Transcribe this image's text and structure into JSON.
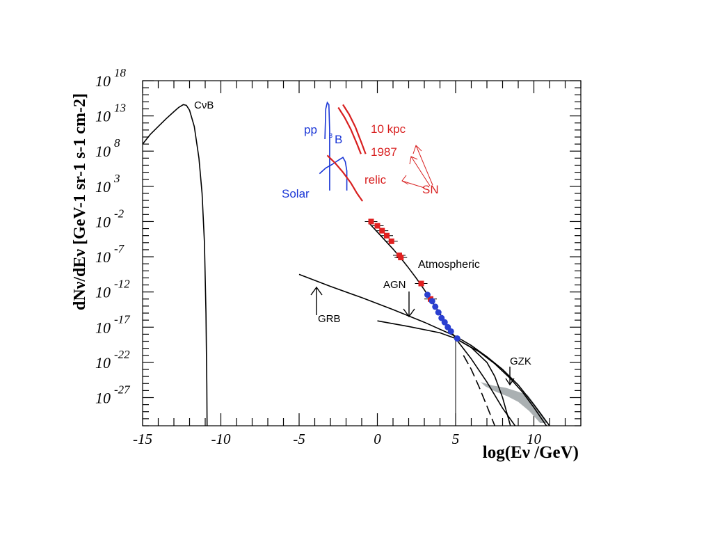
{
  "chart_data": {
    "type": "line",
    "title": "",
    "xlabel": "log(Eν /GeV)",
    "ylabel": "dNν/dEν [GeV-1 sr-1 s-1 cm-2]",
    "x_scale": "log10(E/GeV)",
    "y_scale": "log",
    "xlim": [
      -15,
      13
    ],
    "ylim_exponent": [
      -31,
      18
    ],
    "grid": false,
    "x_tick_labels": [
      "-15",
      "-10",
      "-5",
      "0",
      "5",
      "10"
    ],
    "x_tick_values": [
      -15,
      -10,
      -5,
      0,
      5,
      10
    ],
    "y_tick_exponents": [
      18,
      13,
      8,
      3,
      -2,
      -7,
      -12,
      -17,
      -22,
      -27
    ],
    "y_tick_base": "10",
    "colors": {
      "axes": "#000000",
      "solar": "#1a36d6",
      "supernova": "#d81f1f",
      "data_red": "#e02020",
      "data_blue": "#2a3fd0",
      "gzk_band": "#aab0b2"
    },
    "series": [
      {
        "name": "CνB",
        "x": [
          -15,
          -14.5,
          -14,
          -13.5,
          -13,
          -12.7,
          -12.4,
          -12.2,
          -12,
          -11.7,
          -11.4,
          -11.2,
          -11.05,
          -10.95,
          -10.9,
          -10.88
        ],
        "y": [
          9,
          10.4,
          11.5,
          12.6,
          13.6,
          14.2,
          14.6,
          14.5,
          13.8,
          11.5,
          7,
          2,
          -5,
          -15,
          -25,
          -31
        ]
      },
      {
        "name": "pp",
        "x": [
          -3.35,
          -3.3,
          -3.2,
          -3.1,
          -3.05,
          -3.05
        ],
        "y": [
          9.7,
          14.0,
          14.9,
          14.6,
          11,
          2.4
        ]
      },
      {
        "name": "8B",
        "x": [
          -3.7,
          -3.3,
          -2.9,
          -2.5,
          -2.2,
          -2.05,
          -1.95,
          -1.95
        ],
        "y": [
          4.8,
          5.6,
          6.1,
          6.7,
          7.1,
          6.5,
          5.2,
          2.4
        ]
      },
      {
        "name": "10 kpc",
        "x": [
          -2.2,
          -1.8,
          -1.4,
          -1.0,
          -0.75
        ],
        "y": [
          14.6,
          13.2,
          11.4,
          9.1,
          7.6
        ]
      },
      {
        "name": "1987",
        "x": [
          -2.5,
          -2.1,
          -1.7,
          -1.3,
          -1.05
        ],
        "y": [
          14.2,
          12.8,
          11.1,
          9.0,
          7.6
        ]
      },
      {
        "name": "relic",
        "x": [
          -3.2,
          -2.7,
          -2.2,
          -1.7,
          -1.3,
          -0.95
        ],
        "y": [
          7.4,
          6.3,
          5.0,
          3.5,
          2.0,
          0.9
        ]
      },
      {
        "name": "Atmospheric",
        "x": [
          -0.5,
          0,
          0.5,
          1.0,
          1.5,
          2.0,
          2.5,
          3.0,
          3.5,
          4.0,
          4.5,
          5.0,
          6.0,
          7.0,
          8.0,
          8.8
        ],
        "y": [
          -2.3,
          -3.5,
          -4.7,
          -5.9,
          -7.2,
          -8.6,
          -10.1,
          -11.7,
          -13.4,
          -15.1,
          -16.8,
          -18.6,
          -21.5,
          -24.8,
          -28.5,
          -31
        ]
      },
      {
        "name": "GRB",
        "x": [
          -5,
          -3,
          -1,
          1,
          3,
          5,
          6,
          7,
          8,
          9,
          10,
          11
        ],
        "y": [
          -9.5,
          -11.2,
          -12.8,
          -14.5,
          -16.3,
          -18.3,
          -19.6,
          -21.2,
          -23.0,
          -25.2,
          -28,
          -31
        ]
      },
      {
        "name": "AGN",
        "x": [
          0,
          2,
          4,
          5,
          6,
          7,
          7.5,
          8,
          8.5
        ],
        "y": [
          -16.1,
          -16.9,
          -17.8,
          -18.6,
          -19.9,
          -22.0,
          -24.0,
          -27.0,
          -31
        ]
      },
      {
        "name": "AGN (dashed)",
        "x": [
          5.5,
          6,
          6.5,
          7,
          7.5
        ],
        "y": [
          -21.0,
          -23.0,
          -25.5,
          -28.2,
          -31
        ]
      },
      {
        "name": "GZK",
        "x": [
          5,
          6.5,
          7.5,
          8.5,
          9.3,
          10.0,
          10.8
        ],
        "y": [
          -18.6,
          -20.5,
          -22.2,
          -24.3,
          -26.3,
          -28.4,
          -31
        ]
      },
      {
        "name": "Atmospheric data (red)",
        "x": [
          -0.4,
          0.0,
          0.3,
          0.6,
          0.9,
          1.4,
          1.5,
          2.8,
          3.4
        ],
        "y": [
          -2.0,
          -2.6,
          -3.3,
          -4.0,
          -4.8,
          -6.8,
          -7.1,
          -10.8,
          -13.0
        ]
      },
      {
        "name": "Atmospheric data (blue)",
        "x": [
          3.2,
          3.5,
          3.7,
          3.9,
          4.1,
          4.3,
          4.5,
          4.7,
          5.1
        ],
        "y": [
          -12.4,
          -13.3,
          -14.1,
          -14.9,
          -15.7,
          -16.3,
          -17.0,
          -17.6,
          -18.6
        ]
      }
    ],
    "vertical_marker": {
      "x": 5,
      "y_from": -18.6,
      "y_to": -31
    },
    "gzk_band": {
      "x": [
        6.6,
        7.4,
        8.2,
        8.9,
        9.6,
        10.5,
        10.9,
        10.4,
        9.7,
        9.0,
        8.3,
        7.6,
        6.9
      ],
      "y": [
        -24.8,
        -25.3,
        -25.6,
        -26.1,
        -26.6,
        -29.3,
        -30.6,
        -30.6,
        -28.9,
        -27.6,
        -26.8,
        -26.2,
        -25.4
      ]
    },
    "annotations": {
      "cnub": "CνB",
      "pp": "pp",
      "b8_sup": "8",
      "b8": "B",
      "solar": "Solar",
      "sn_10kpc": "10 kpc",
      "sn_1987": "1987",
      "sn_relic": "relic",
      "sn": "SN",
      "atmospheric": "Atmospheric",
      "agn": "AGN",
      "grb": "GRB",
      "gzk": "GZK"
    }
  }
}
